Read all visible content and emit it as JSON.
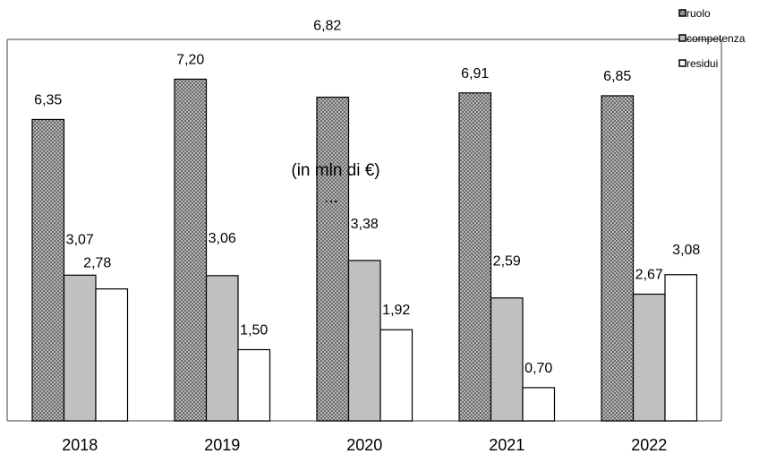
{
  "chart_data": {
    "type": "bar",
    "subtitle": "(in mln di €)",
    "categories": [
      "2018",
      "2019",
      "2020",
      "2021",
      "2022"
    ],
    "series": [
      {
        "name": "ruolo",
        "values": [
          6.35,
          7.2,
          6.82,
          6.91,
          6.85
        ],
        "labels": [
          "6,35",
          "7,20",
          "6,82",
          "6,91",
          "6,85"
        ],
        "fill": "checkered-grey"
      },
      {
        "name": "competenza",
        "values": [
          3.07,
          3.06,
          3.38,
          2.59,
          2.67
        ],
        "labels": [
          "3,07",
          "3,06",
          "3,38",
          "2,59",
          "2,67"
        ],
        "fill": "#c0c0c0"
      },
      {
        "name": "residui",
        "values": [
          2.78,
          1.5,
          1.92,
          0.7,
          3.08
        ],
        "labels": [
          "2,78",
          "1,50",
          "1,92",
          "0,70",
          "3,08"
        ],
        "fill": "#ffffff"
      }
    ],
    "ylim": [
      0,
      8
    ],
    "grid": false,
    "legend_position": "top-right",
    "colors": {
      "ruolo": "#808080",
      "competenza": "#c0c0c0",
      "residui": "#ffffff",
      "axis": "#808080"
    }
  }
}
